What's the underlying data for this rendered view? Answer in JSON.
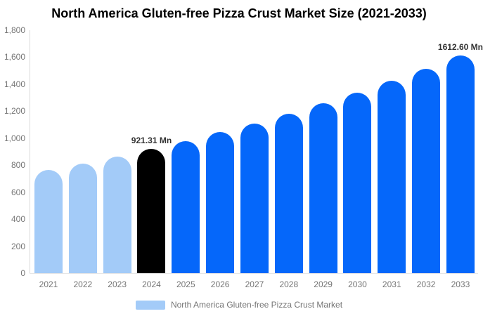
{
  "header": {
    "title": "North America Gluten-free Pizza Crust Market Size (2021-2033)"
  },
  "chart_data": {
    "type": "bar",
    "title": "North America Gluten-free Pizza Crust Market Size (2021-2033)",
    "categories": [
      "2021",
      "2022",
      "2023",
      "2024",
      "2025",
      "2026",
      "2027",
      "2028",
      "2029",
      "2030",
      "2031",
      "2032",
      "2033"
    ],
    "values": [
      764.3,
      813.4,
      865.7,
      921.31,
      980.5,
      1043.5,
      1110.5,
      1181.9,
      1257.8,
      1338.6,
      1424.6,
      1516.1,
      1612.6
    ],
    "unit": "Mn",
    "point_labels": [
      "",
      "",
      "",
      "921.31 Mn",
      "",
      "",
      "",
      "",
      "",
      "",
      "",
      "",
      "1612.60 Mn"
    ],
    "bar_colors": [
      "#a3cbf8",
      "#a3cbf8",
      "#a3cbf8",
      "#000000",
      "#0567fa",
      "#0567fa",
      "#0567fa",
      "#0567fa",
      "#0567fa",
      "#0567fa",
      "#0567fa",
      "#0567fa",
      "#0567fa"
    ],
    "y_ticks": [
      "0",
      "200",
      "400",
      "600",
      "800",
      "1,000",
      "1,200",
      "1,400",
      "1,600",
      "1,800"
    ],
    "ylim": [
      0,
      1800
    ],
    "xlabel": "",
    "ylabel": "",
    "grid": false,
    "legend_position": "bottom-center"
  },
  "legend": {
    "label": "North America Gluten-free Pizza Crust Market",
    "swatch_color": "#a3cbf8"
  },
  "colors": {
    "past_bar_blue": "#a3cbf8",
    "forecast_bar_blue": "#0567fa",
    "base_year_black": "#000000",
    "axis_line": "#d9d9d9",
    "tick_text": "#757575",
    "point_label_text": "#333333",
    "title_text": "#000000"
  }
}
